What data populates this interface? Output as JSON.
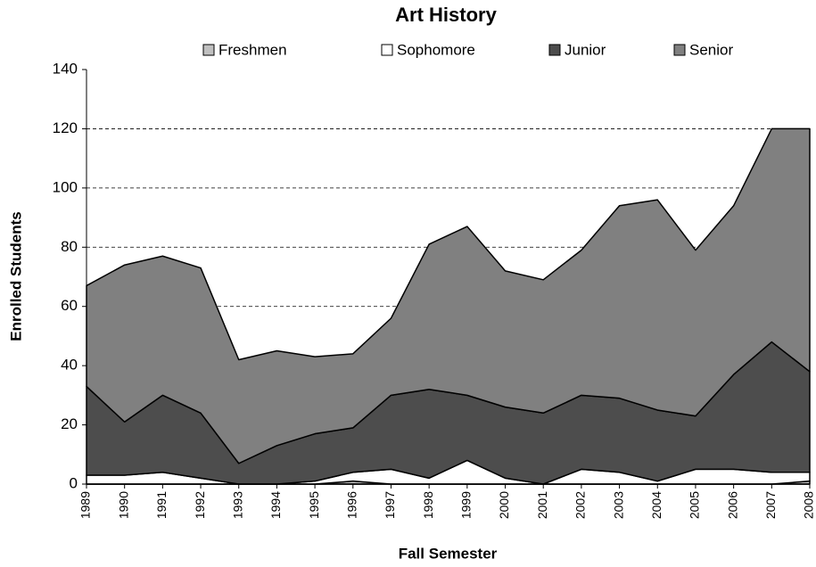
{
  "chart_data": {
    "type": "stacked-area",
    "title": "Art History",
    "xlabel": "Fall Semester",
    "ylabel": "Enrolled Students",
    "categories": [
      "1989",
      "1990",
      "1991",
      "1992",
      "1993",
      "1994",
      "1995",
      "1996",
      "1997",
      "1998",
      "1999",
      "2000",
      "2001",
      "2002",
      "2003",
      "2004",
      "2005",
      "2006",
      "2007",
      "2008"
    ],
    "series": [
      {
        "name": "Freshmen",
        "color": "#c0c0c0",
        "values": [
          0,
          0,
          0,
          0,
          0,
          0,
          0,
          1,
          0,
          0,
          0,
          0,
          0,
          0,
          0,
          0,
          0,
          0,
          0,
          1
        ]
      },
      {
        "name": "Sophomore",
        "color": "#ffffff",
        "values": [
          3,
          3,
          4,
          2,
          0,
          0,
          1,
          3,
          5,
          2,
          8,
          2,
          0,
          5,
          4,
          1,
          5,
          5,
          4,
          3
        ]
      },
      {
        "name": "Junior",
        "color": "#4d4d4d",
        "values": [
          30,
          18,
          26,
          22,
          7,
          13,
          16,
          15,
          25,
          30,
          22,
          24,
          24,
          25,
          25,
          24,
          18,
          32,
          44,
          34
        ]
      },
      {
        "name": "Senior",
        "color": "#808080",
        "values": [
          34,
          53,
          47,
          49,
          35,
          32,
          26,
          25,
          26,
          49,
          57,
          46,
          45,
          49,
          65,
          71,
          56,
          57,
          72,
          82
        ]
      }
    ],
    "ylim": [
      0,
      140
    ],
    "yticks": [
      0,
      20,
      40,
      60,
      80,
      100,
      120,
      140
    ],
    "grid": true,
    "legend": "top"
  }
}
